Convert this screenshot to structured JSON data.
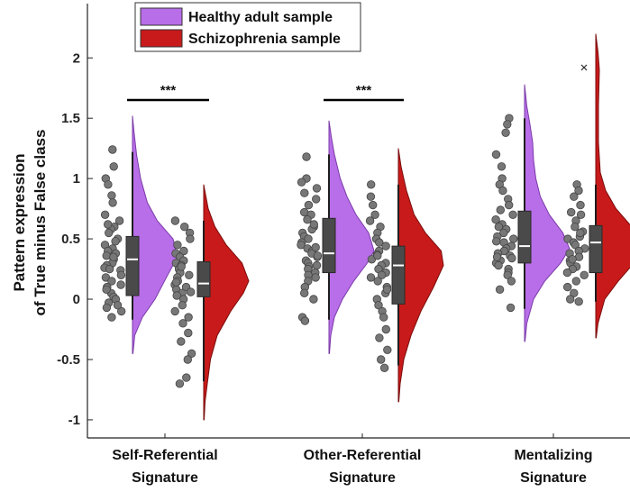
{
  "chart_data": {
    "type": "raincloud",
    "ylabel_lines": [
      "Pattern expression",
      "of True minus False class"
    ],
    "ylim": [
      -1.15,
      2.45
    ],
    "yticks": [
      {
        "value": 2,
        "label": "2"
      },
      {
        "value": 1.5,
        "label": "1.5"
      },
      {
        "value": 1,
        "label": "1"
      },
      {
        "value": 0.5,
        "label": "0.5"
      },
      {
        "value": 0,
        "label": "0"
      },
      {
        "value": -0.5,
        "label": "-0.5"
      },
      {
        "value": -1,
        "label": "-1"
      }
    ],
    "categories": [
      {
        "line1": "Self-Referential",
        "line2": "Signature"
      },
      {
        "line1": "Other-Referential",
        "line2": "Signature"
      },
      {
        "line1": "Mentalizing",
        "line2": "Signature"
      }
    ],
    "legend": [
      {
        "label": "Healthy adult sample",
        "color": "#b86ee8"
      },
      {
        "label": "Schizophrenia sample",
        "color": "#c81a1a"
      }
    ],
    "significance": [
      {
        "category": 0,
        "label": "***"
      },
      {
        "category": 1,
        "label": "***"
      }
    ],
    "series": [
      {
        "name": "Healthy adult sample",
        "color": "#b86ee8",
        "groups": [
          {
            "q1": 0.03,
            "median": 0.33,
            "q3": 0.52,
            "whisker_low": -0.17,
            "whisker_high": 1.22,
            "density_range": [
              -0.45,
              1.52
            ],
            "density_pts": [
              [
                -0.45,
                0.01
              ],
              [
                -0.3,
                0.05
              ],
              [
                -0.15,
                0.22
              ],
              [
                0.0,
                0.5
              ],
              [
                0.2,
                0.78
              ],
              [
                0.35,
                1.0
              ],
              [
                0.5,
                0.9
              ],
              [
                0.65,
                0.55
              ],
              [
                0.8,
                0.33
              ],
              [
                1.0,
                0.18
              ],
              [
                1.2,
                0.09
              ],
              [
                1.4,
                0.03
              ],
              [
                1.52,
                0.0
              ]
            ],
            "points": [
              1.24,
              1.1,
              1.0,
              0.95,
              0.86,
              0.8,
              0.7,
              0.65,
              0.6,
              0.58,
              0.55,
              0.5,
              0.48,
              0.45,
              0.42,
              0.4,
              0.38,
              0.36,
              0.33,
              0.3,
              0.28,
              0.26,
              0.24,
              0.2,
              0.18,
              0.15,
              0.12,
              0.1,
              0.05,
              0.02,
              0.0,
              -0.03,
              -0.07,
              -0.1,
              -0.15,
              0.62,
              0.35,
              0.25,
              0.08,
              -0.05
            ]
          },
          {
            "q1": 0.22,
            "median": 0.38,
            "q3": 0.67,
            "whisker_low": -0.17,
            "whisker_high": 1.2,
            "density_range": [
              -0.45,
              1.48
            ],
            "density_pts": [
              [
                -0.45,
                0.01
              ],
              [
                -0.3,
                0.04
              ],
              [
                -0.15,
                0.12
              ],
              [
                0.0,
                0.3
              ],
              [
                0.15,
                0.55
              ],
              [
                0.3,
                0.85
              ],
              [
                0.4,
                1.0
              ],
              [
                0.55,
                0.88
              ],
              [
                0.7,
                0.6
              ],
              [
                0.85,
                0.4
              ],
              [
                1.0,
                0.25
              ],
              [
                1.2,
                0.12
              ],
              [
                1.35,
                0.05
              ],
              [
                1.48,
                0.0
              ]
            ],
            "points": [
              1.18,
              1.0,
              0.97,
              0.92,
              0.88,
              0.83,
              0.78,
              0.72,
              0.7,
              0.66,
              0.6,
              0.58,
              0.55,
              0.52,
              0.5,
              0.47,
              0.45,
              0.42,
              0.4,
              0.38,
              0.35,
              0.32,
              0.3,
              0.27,
              0.25,
              0.22,
              0.2,
              0.15,
              0.1,
              0.05,
              0.0,
              -0.15,
              -0.18,
              0.62,
              0.43,
              0.36,
              0.28,
              0.18
            ]
          },
          {
            "q1": 0.3,
            "median": 0.44,
            "q3": 0.73,
            "whisker_low": -0.08,
            "whisker_high": 1.5,
            "density_range": [
              -0.35,
              1.78
            ],
            "density_pts": [
              [
                -0.35,
                0.01
              ],
              [
                -0.2,
                0.05
              ],
              [
                0.0,
                0.2
              ],
              [
                0.15,
                0.45
              ],
              [
                0.3,
                0.8
              ],
              [
                0.42,
                1.0
              ],
              [
                0.55,
                0.85
              ],
              [
                0.7,
                0.55
              ],
              [
                0.85,
                0.35
              ],
              [
                1.0,
                0.25
              ],
              [
                1.15,
                0.2
              ],
              [
                1.3,
                0.18
              ],
              [
                1.45,
                0.12
              ],
              [
                1.6,
                0.05
              ],
              [
                1.78,
                0.0
              ]
            ],
            "points": [
              1.5,
              1.45,
              1.38,
              1.2,
              1.1,
              1.0,
              0.95,
              0.9,
              0.83,
              0.78,
              0.74,
              0.7,
              0.66,
              0.62,
              0.58,
              0.55,
              0.52,
              0.5,
              0.47,
              0.44,
              0.42,
              0.4,
              0.38,
              0.36,
              0.34,
              0.32,
              0.3,
              0.28,
              0.25,
              0.22,
              0.2,
              0.15,
              0.08,
              -0.07,
              0.6,
              0.48,
              0.35
            ]
          }
        ]
      },
      {
        "name": "Schizophrenia sample",
        "color": "#c81a1a",
        "groups": [
          {
            "q1": 0.02,
            "median": 0.13,
            "q3": 0.31,
            "whisker_low": -0.68,
            "whisker_high": 0.65,
            "density_range": [
              -1.0,
              0.95
            ],
            "density_pts": [
              [
                -1.0,
                0.01
              ],
              [
                -0.85,
                0.03
              ],
              [
                -0.7,
                0.08
              ],
              [
                -0.5,
                0.15
              ],
              [
                -0.3,
                0.3
              ],
              [
                -0.1,
                0.6
              ],
              [
                0.05,
                0.88
              ],
              [
                0.15,
                1.0
              ],
              [
                0.3,
                0.85
              ],
              [
                0.45,
                0.5
              ],
              [
                0.6,
                0.25
              ],
              [
                0.75,
                0.1
              ],
              [
                0.95,
                0.0
              ]
            ],
            "points": [
              0.65,
              0.6,
              0.55,
              0.5,
              0.45,
              0.4,
              0.38,
              0.35,
              0.32,
              0.3,
              0.28,
              0.25,
              0.22,
              0.2,
              0.18,
              0.15,
              0.12,
              0.1,
              0.08,
              0.05,
              0.03,
              0.0,
              -0.05,
              -0.1,
              -0.15,
              -0.2,
              -0.28,
              -0.35,
              -0.45,
              -0.5,
              -0.65,
              -0.7,
              0.27,
              0.14,
              0.06
            ]
          },
          {
            "q1": -0.04,
            "median": 0.28,
            "q3": 0.44,
            "whisker_low": -0.55,
            "whisker_high": 0.95,
            "density_range": [
              -0.85,
              1.25
            ],
            "density_pts": [
              [
                -0.85,
                0.01
              ],
              [
                -0.7,
                0.04
              ],
              [
                -0.5,
                0.12
              ],
              [
                -0.3,
                0.28
              ],
              [
                -0.1,
                0.5
              ],
              [
                0.1,
                0.78
              ],
              [
                0.28,
                1.0
              ],
              [
                0.4,
                0.95
              ],
              [
                0.55,
                0.6
              ],
              [
                0.7,
                0.35
              ],
              [
                0.9,
                0.18
              ],
              [
                1.1,
                0.06
              ],
              [
                1.25,
                0.0
              ]
            ],
            "points": [
              0.95,
              0.85,
              0.78,
              0.7,
              0.65,
              0.6,
              0.55,
              0.5,
              0.47,
              0.44,
              0.4,
              0.37,
              0.33,
              0.3,
              0.28,
              0.25,
              0.22,
              0.2,
              0.15,
              0.1,
              0.05,
              0.0,
              -0.05,
              -0.1,
              -0.15,
              -0.25,
              -0.32,
              -0.42,
              -0.5,
              -0.57,
              0.36,
              0.18,
              0.08
            ]
          },
          {
            "q1": 0.22,
            "median": 0.47,
            "q3": 0.61,
            "whisker_low": -0.02,
            "whisker_high": 0.95,
            "outlier": 1.92,
            "density_range": [
              -0.32,
              2.2
            ],
            "density_pts": [
              [
                -0.32,
                0.01
              ],
              [
                -0.2,
                0.05
              ],
              [
                0.0,
                0.2
              ],
              [
                0.15,
                0.5
              ],
              [
                0.3,
                0.85
              ],
              [
                0.45,
                1.0
              ],
              [
                0.6,
                0.8
              ],
              [
                0.75,
                0.45
              ],
              [
                0.9,
                0.22
              ],
              [
                1.05,
                0.1
              ],
              [
                1.3,
                0.06
              ],
              [
                1.6,
                0.06
              ],
              [
                1.9,
                0.08
              ],
              [
                2.05,
                0.05
              ],
              [
                2.2,
                0.0
              ]
            ],
            "points": [
              0.95,
              0.9,
              0.85,
              0.78,
              0.7,
              0.65,
              0.6,
              0.56,
              0.52,
              0.5,
              0.47,
              0.45,
              0.42,
              0.4,
              0.38,
              0.35,
              0.32,
              0.3,
              0.27,
              0.25,
              0.22,
              0.2,
              0.15,
              0.1,
              0.05,
              0.0,
              -0.02,
              0.72,
              0.55,
              0.33
            ]
          }
        ]
      }
    ]
  }
}
